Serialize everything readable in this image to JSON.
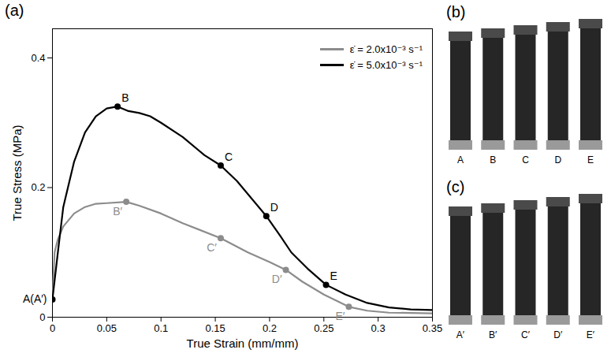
{
  "chart_data": {
    "type": "line",
    "panel_label": "(a)",
    "x_label": "True Strain (mm/mm)",
    "y_label": "True Stress (MPa)",
    "xlim": [
      0,
      0.35
    ],
    "xticks": [
      0,
      0.05,
      0.1,
      0.15,
      0.2,
      0.25,
      0.3,
      0.35
    ],
    "ylim": [
      0,
      0.445
    ],
    "yticks": [
      0,
      0.2,
      0.4
    ],
    "grid": false,
    "legend": "top-right",
    "series": [
      {
        "name": "ε̇ = 2.0x10⁻³ s⁻¹",
        "color": "#8c8c8c",
        "x": [
          0,
          0.002,
          0.005,
          0.01,
          0.02,
          0.03,
          0.04,
          0.05,
          0.068,
          0.08,
          0.1,
          0.12,
          0.155,
          0.18,
          0.2,
          0.215,
          0.23,
          0.25,
          0.273,
          0.29,
          0.31,
          0.35
        ],
        "values": [
          0.0275,
          0.1,
          0.12,
          0.14,
          0.16,
          0.17,
          0.175,
          0.176,
          0.178,
          0.172,
          0.16,
          0.145,
          0.122,
          0.1,
          0.085,
          0.073,
          0.055,
          0.035,
          0.016,
          0.01,
          0.007,
          0.006
        ],
        "points": [
          {
            "label": "B′",
            "x": 0.068,
            "y": 0.178
          },
          {
            "label": "C′",
            "x": 0.155,
            "y": 0.122
          },
          {
            "label": "D′",
            "x": 0.215,
            "y": 0.073
          },
          {
            "label": "E′",
            "x": 0.273,
            "y": 0.016
          }
        ]
      },
      {
        "name": "ε̇ = 5.0x10⁻³ s⁻¹",
        "color": "#000000",
        "x": [
          0,
          0.005,
          0.01,
          0.02,
          0.03,
          0.04,
          0.05,
          0.06,
          0.07,
          0.08,
          0.09,
          0.1,
          0.12,
          0.14,
          0.155,
          0.17,
          0.18,
          0.197,
          0.21,
          0.22,
          0.235,
          0.252,
          0.27,
          0.29,
          0.31,
          0.33,
          0.35
        ],
        "values": [
          0.0275,
          0.1,
          0.17,
          0.24,
          0.285,
          0.31,
          0.322,
          0.325,
          0.318,
          0.315,
          0.31,
          0.3,
          0.278,
          0.25,
          0.234,
          0.21,
          0.19,
          0.156,
          0.125,
          0.1,
          0.075,
          0.05,
          0.035,
          0.022,
          0.015,
          0.012,
          0.011
        ],
        "points": [
          {
            "label": "A(A′)",
            "x": 0,
            "y": 0.0275
          },
          {
            "label": "B",
            "x": 0.06,
            "y": 0.325
          },
          {
            "label": "C",
            "x": 0.155,
            "y": 0.234
          },
          {
            "label": "D",
            "x": 0.197,
            "y": 0.156
          },
          {
            "label": "E",
            "x": 0.252,
            "y": 0.05
          }
        ]
      }
    ]
  },
  "photo_panels": [
    {
      "panel_label": "(b)",
      "labels": [
        "A",
        "B",
        "C",
        "D",
        "E"
      ]
    },
    {
      "panel_label": "(c)",
      "labels": [
        "A′",
        "B′",
        "C′",
        "D′",
        "E′"
      ]
    }
  ]
}
